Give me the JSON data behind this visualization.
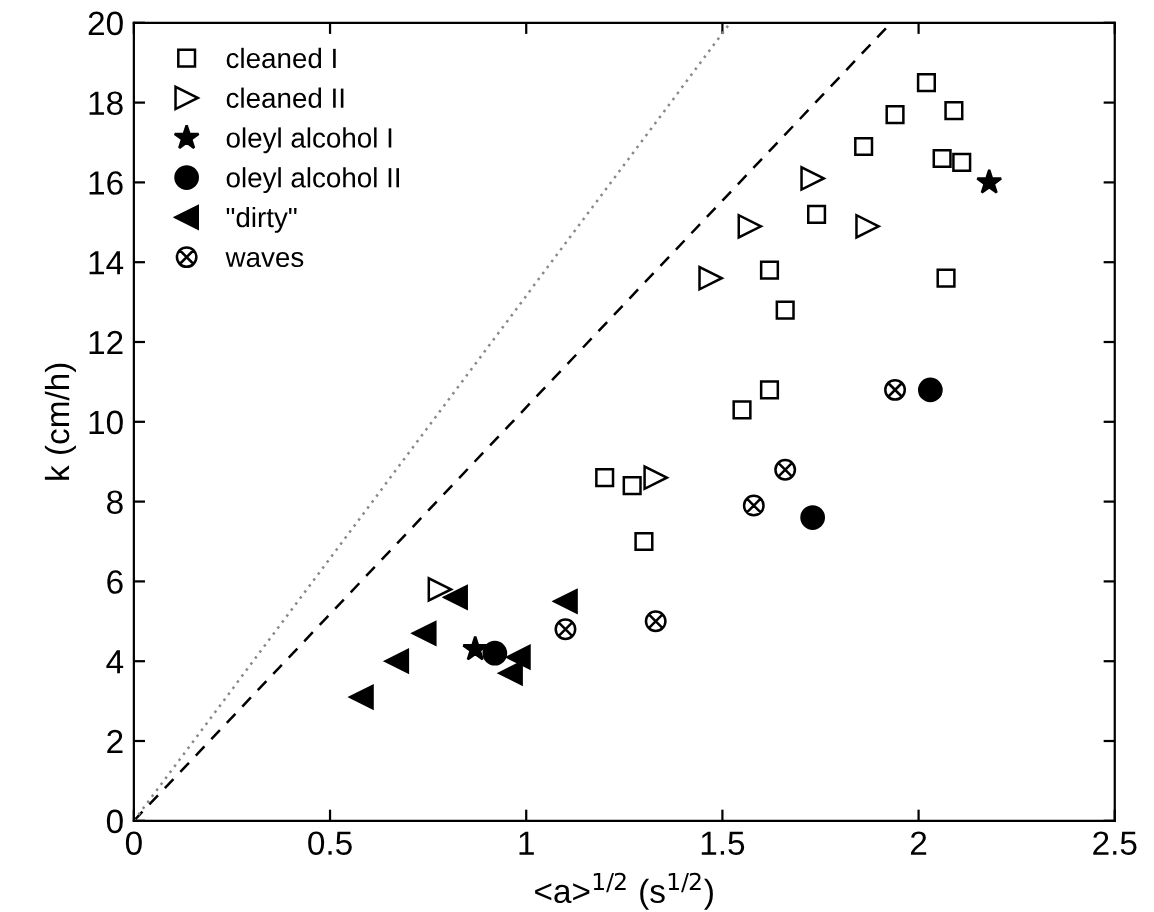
{
  "chart_data": {
    "type": "scatter",
    "xlabel": "<a>$^{1/2}$ (s$^{1/2}$)",
    "ylabel": "k (cm/h)",
    "xlim": [
      0,
      2.5
    ],
    "ylim": [
      0,
      20
    ],
    "xticks": [
      0,
      0.5,
      1,
      1.5,
      2,
      2.5
    ],
    "yticks": [
      0,
      2,
      4,
      6,
      8,
      10,
      12,
      14,
      16,
      18,
      20
    ],
    "grid": false,
    "legend": "top left",
    "series": [
      {
        "name": "cleaned I",
        "color": "#000000",
        "marker": "square-open",
        "x": [
          1.2,
          1.27,
          1.3,
          1.55,
          1.62,
          1.62,
          1.66,
          1.74,
          1.86,
          1.94,
          2.02,
          2.09,
          2.06,
          2.11,
          2.07
        ],
        "values": [
          8.6,
          8.4,
          7.0,
          10.3,
          10.8,
          13.8,
          12.8,
          15.2,
          16.9,
          17.7,
          18.5,
          17.8,
          16.6,
          16.5,
          13.6
        ]
      },
      {
        "name": "cleaned II",
        "color": "#000000",
        "marker": "triangle-right-open",
        "x": [
          0.78,
          1.33,
          1.47,
          1.57,
          1.73,
          1.87
        ],
        "values": [
          5.8,
          8.6,
          13.6,
          14.9,
          16.1,
          14.9
        ]
      },
      {
        "name": "oleyl alcohol I",
        "color": "#000000",
        "marker": "star",
        "x": [
          0.87,
          2.18
        ],
        "values": [
          4.3,
          16.0
        ]
      },
      {
        "name": "oleyl alcohol II",
        "color": "#000000",
        "marker": "circle",
        "x": [
          0.92,
          1.73,
          2.03
        ],
        "values": [
          4.2,
          7.6,
          10.8
        ]
      },
      {
        "name": "\"dirty\"",
        "color": "#000000",
        "marker": "triangle-left",
        "x": [
          0.58,
          0.67,
          0.74,
          0.82,
          0.96,
          0.98,
          1.1
        ],
        "values": [
          3.1,
          4.0,
          4.7,
          5.6,
          3.7,
          4.1,
          5.5
        ]
      },
      {
        "name": "waves",
        "color": "#000000",
        "marker": "cross",
        "x": [
          1.1,
          1.33,
          1.58,
          1.66,
          1.94
        ],
        "values": [
          4.8,
          5.0,
          7.9,
          8.8,
          10.8
        ]
      },
      {
        "type": "line",
        "color": "#000000",
        "line_style": "dashed",
        "marker": "none",
        "x": [
          0,
          1.93
        ],
        "values": [
          0,
          20
        ]
      },
      {
        "type": "line",
        "color": "#888888",
        "line_style": "dotted",
        "marker": "none",
        "x": [
          0,
          1.52
        ],
        "values": [
          0,
          20
        ]
      }
    ]
  }
}
